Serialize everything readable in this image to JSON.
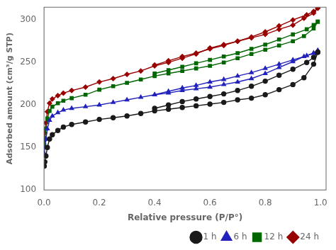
{
  "chart_data": {
    "type": "line",
    "xlabel": "Relative pressure (P/P°)",
    "ylabel": "Adsorbed amount (cm³/g STP)",
    "xlim": [
      0.0,
      1.02
    ],
    "ylim": [
      100,
      315
    ],
    "xticks": [
      {
        "value": 0.0,
        "label": "0.0"
      },
      0.2,
      0.4,
      0.6,
      0.8,
      {
        "value": 1.0,
        "label": "1.0"
      }
    ],
    "yticks": [
      100,
      150,
      200,
      250,
      300
    ],
    "grid": false,
    "legend": "lower right",
    "series": [
      {
        "name": "1 h",
        "color": "#1a1a1a",
        "marker": "o",
        "x": [
          0.001,
          0.003,
          0.007,
          0.012,
          0.02,
          0.03,
          0.05,
          0.07,
          0.1,
          0.15,
          0.2,
          0.25,
          0.3,
          0.35,
          0.4,
          0.45,
          0.5,
          0.55,
          0.6,
          0.65,
          0.7,
          0.75,
          0.8,
          0.85,
          0.9,
          0.94,
          0.975,
          0.99
        ],
        "values": [
          128,
          133,
          140,
          150,
          160,
          165,
          170,
          174,
          177,
          180,
          183,
          185,
          187,
          190,
          193,
          195,
          197,
          199,
          201,
          203,
          206,
          208,
          212,
          218,
          224,
          232,
          248,
          262
        ]
      },
      {
        "color": "#1a1a1a",
        "marker": "o",
        "x": [
          0.99,
          0.975,
          0.95,
          0.9,
          0.85,
          0.8,
          0.75,
          0.7,
          0.65,
          0.6,
          0.55,
          0.5,
          0.45,
          0.4
        ],
        "values": [
          262,
          256,
          250,
          242,
          235,
          228,
          222,
          217,
          213,
          210,
          207,
          204,
          200,
          196
        ]
      },
      {
        "name": "6 h",
        "color": "#2222bb",
        "marker": "^",
        "x": [
          0.001,
          0.003,
          0.007,
          0.012,
          0.02,
          0.03,
          0.05,
          0.07,
          0.1,
          0.15,
          0.2,
          0.25,
          0.3,
          0.35,
          0.4,
          0.45,
          0.5,
          0.55,
          0.6,
          0.65,
          0.7,
          0.75,
          0.8,
          0.85,
          0.9,
          0.94,
          0.975,
          0.99
        ],
        "values": [
          143,
          150,
          160,
          172,
          182,
          187,
          191,
          194,
          196,
          198,
          200,
          203,
          206,
          209,
          212,
          214,
          217,
          219,
          221,
          224,
          227,
          231,
          237,
          244,
          251,
          257,
          261,
          264
        ]
      },
      {
        "color": "#2222bb",
        "marker": "^",
        "x": [
          0.99,
          0.975,
          0.95,
          0.9,
          0.85,
          0.8,
          0.75,
          0.7,
          0.65,
          0.6,
          0.55,
          0.5,
          0.45,
          0.4
        ],
        "values": [
          264,
          261,
          258,
          253,
          248,
          243,
          238,
          234,
          230,
          227,
          223,
          220,
          216,
          212
        ]
      },
      {
        "name": "12 h",
        "color": "#006600",
        "marker": "s",
        "x": [
          0.001,
          0.003,
          0.007,
          0.012,
          0.02,
          0.03,
          0.05,
          0.07,
          0.1,
          0.15,
          0.2,
          0.25,
          0.3,
          0.35,
          0.4,
          0.45,
          0.5,
          0.55,
          0.6,
          0.65,
          0.7,
          0.75,
          0.8,
          0.85,
          0.9,
          0.94,
          0.975,
          0.99
        ],
        "values": [
          153,
          161,
          172,
          184,
          193,
          198,
          202,
          205,
          208,
          212,
          218,
          222,
          226,
          230,
          234,
          237,
          240,
          243,
          246,
          250,
          255,
          260,
          265,
          270,
          275,
          281,
          290,
          298
        ]
      },
      {
        "color": "#006600",
        "marker": "s",
        "x": [
          0.99,
          0.975,
          0.95,
          0.9,
          0.85,
          0.8,
          0.75,
          0.7,
          0.65,
          0.6,
          0.55,
          0.5,
          0.45,
          0.4
        ],
        "values": [
          298,
          294,
          289,
          283,
          277,
          271,
          266,
          261,
          257,
          253,
          249,
          245,
          241,
          237
        ]
      },
      {
        "name": "24 h",
        "color": "#990000",
        "marker": "D",
        "x": [
          0.001,
          0.003,
          0.007,
          0.012,
          0.02,
          0.03,
          0.05,
          0.07,
          0.1,
          0.15,
          0.2,
          0.25,
          0.3,
          0.35,
          0.4,
          0.45,
          0.5,
          0.55,
          0.6,
          0.65,
          0.7,
          0.75,
          0.8,
          0.85,
          0.9,
          0.94,
          0.975,
          0.99
        ],
        "values": [
          158,
          167,
          179,
          192,
          202,
          207,
          211,
          214,
          217,
          221,
          227,
          231,
          236,
          240,
          246,
          250,
          255,
          260,
          267,
          271,
          275,
          279,
          283,
          289,
          294,
          302,
          308,
          314
        ]
      },
      {
        "color": "#990000",
        "marker": "D",
        "x": [
          0.99,
          0.975,
          0.95,
          0.9,
          0.85,
          0.8,
          0.75,
          0.7,
          0.65,
          0.6,
          0.55,
          0.5,
          0.45,
          0.4
        ],
        "values": [
          314,
          310,
          306,
          300,
          293,
          286,
          280,
          275,
          270,
          266,
          261,
          257,
          252,
          247
        ]
      }
    ]
  }
}
